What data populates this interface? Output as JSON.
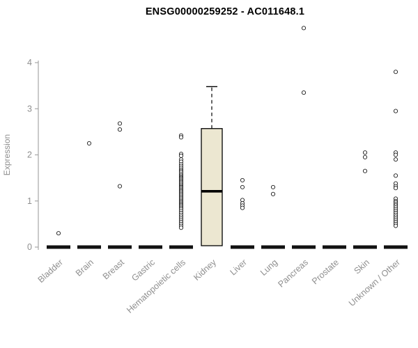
{
  "chart_data": {
    "type": "boxplot",
    "title": "ENSG00000259252 - AC011648.1",
    "ylabel": "Expression",
    "xlabel": "",
    "ylim": [
      0,
      4
    ],
    "yticks": [
      0,
      1,
      2,
      3,
      4
    ],
    "grid": false,
    "legend": false,
    "categories": [
      "Bladder",
      "Brain",
      "Breast",
      "Gastric",
      "Hematopoietic cells",
      "Kidney",
      "Liver",
      "Lung",
      "Pancreas",
      "Prostate",
      "Skin",
      "Unknown / Other"
    ],
    "series": [
      {
        "category": "Bladder",
        "q1": 0,
        "median": 0,
        "q3": 0,
        "whisker_low": 0,
        "whisker_high": 0,
        "outliers": [
          0.3
        ]
      },
      {
        "category": "Brain",
        "q1": 0,
        "median": 0,
        "q3": 0,
        "whisker_low": 0,
        "whisker_high": 0,
        "outliers": [
          2.25
        ]
      },
      {
        "category": "Breast",
        "q1": 0,
        "median": 0,
        "q3": 0,
        "whisker_low": 0,
        "whisker_high": 0,
        "outliers": [
          2.68,
          2.55,
          1.32
        ]
      },
      {
        "category": "Gastric",
        "q1": 0,
        "median": 0,
        "q3": 0,
        "whisker_low": 0,
        "whisker_high": 0,
        "outliers": []
      },
      {
        "category": "Hematopoietic cells",
        "q1": 0,
        "median": 0,
        "q3": 0,
        "whisker_low": 0,
        "whisker_high": 0,
        "outliers": [
          2.42,
          2.38,
          2.02,
          1.98,
          1.9,
          1.85,
          1.8,
          1.76,
          1.72,
          1.68,
          1.65,
          1.62,
          1.58,
          1.55,
          1.52,
          1.5,
          1.47,
          1.44,
          1.41,
          1.38,
          1.35,
          1.32,
          1.3,
          1.27,
          1.24,
          1.21,
          1.18,
          1.15,
          1.12,
          1.09,
          1.06,
          1.03,
          1.0,
          0.97,
          0.94,
          0.91,
          0.88,
          0.85,
          0.82,
          0.78,
          0.74,
          0.7,
          0.66,
          0.62,
          0.58,
          0.54,
          0.5,
          0.46,
          0.42
        ]
      },
      {
        "category": "Kidney",
        "q1": 0.03,
        "median": 1.21,
        "q3": 2.57,
        "whisker_low": 0.03,
        "whisker_high": 3.48,
        "outliers": []
      },
      {
        "category": "Liver",
        "q1": 0,
        "median": 0,
        "q3": 0,
        "whisker_low": 0,
        "whisker_high": 0,
        "outliers": [
          1.45,
          1.3,
          1.02,
          0.95,
          0.9,
          0.85
        ]
      },
      {
        "category": "Lung",
        "q1": 0,
        "median": 0,
        "q3": 0,
        "whisker_low": 0,
        "whisker_high": 0,
        "outliers": [
          1.3,
          1.15
        ]
      },
      {
        "category": "Pancreas",
        "q1": 0,
        "median": 0,
        "q3": 0,
        "whisker_low": 0,
        "whisker_high": 0,
        "outliers": [
          4.75,
          3.35
        ]
      },
      {
        "category": "Prostate",
        "q1": 0,
        "median": 0,
        "q3": 0,
        "whisker_low": 0,
        "whisker_high": 0,
        "outliers": []
      },
      {
        "category": "Skin",
        "q1": 0,
        "median": 0,
        "q3": 0,
        "whisker_low": 0,
        "whisker_high": 0,
        "outliers": [
          2.05,
          1.95,
          1.65
        ]
      },
      {
        "category": "Unknown / Other",
        "q1": 0,
        "median": 0,
        "q3": 0,
        "whisker_low": 0,
        "whisker_high": 0,
        "outliers": [
          3.8,
          2.95,
          2.05,
          2.0,
          1.9,
          1.55,
          1.38,
          1.32,
          1.28,
          1.05,
          1.0,
          0.97,
          0.93,
          0.9,
          0.86,
          0.82,
          0.78,
          0.74,
          0.7,
          0.66,
          0.62,
          0.58,
          0.54,
          0.5,
          0.46
        ]
      }
    ],
    "colors": {
      "box_fill": "#ece7d1",
      "box_stroke": "#000000",
      "median": "#000000",
      "zero_bar": "#111111",
      "axis": "#a6a6a6",
      "tick_label": "#8f8f8f",
      "outlier_stroke": "#1a1a1a",
      "title": "#000000"
    }
  }
}
